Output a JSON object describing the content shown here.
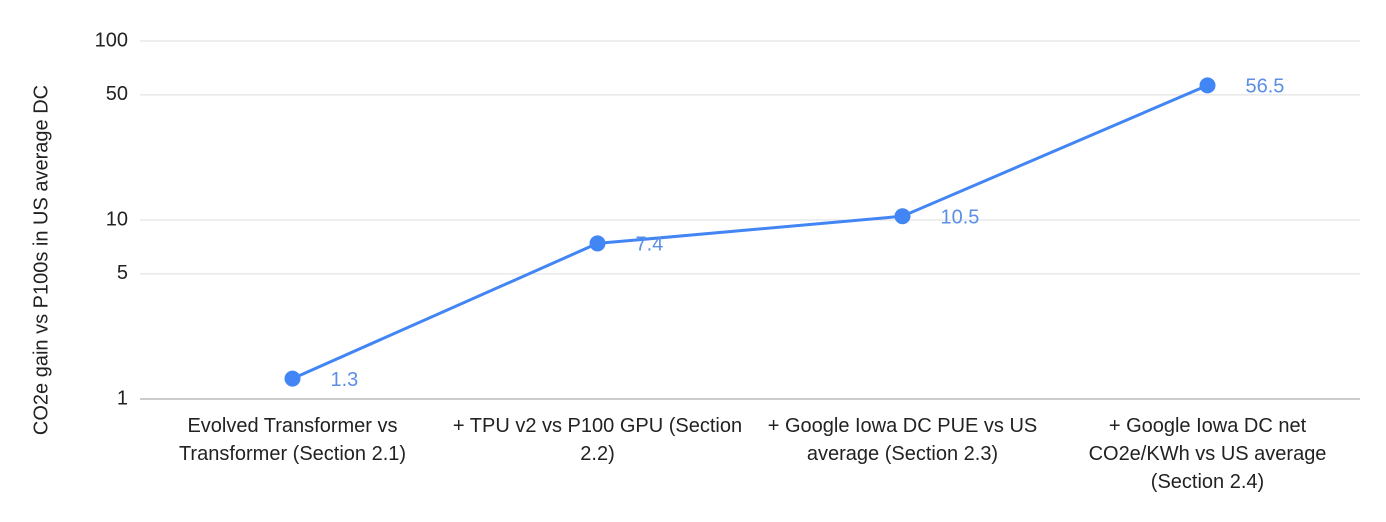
{
  "chart_data": {
    "type": "line",
    "y_label": "CO2e gain vs P100s in US average DC",
    "categories": [
      "Evolved Transformer vs Transformer (Section 2.1)",
      "+ TPU v2 vs P100 GPU (Section 2.2)",
      "+ Google Iowa DC PUE vs US average (Section 2.3)",
      "+ Google Iowa DC net CO2e/KWh vs US average (Section 2.4)"
    ],
    "values": [
      1.3,
      7.4,
      10.5,
      56.5
    ],
    "color": "#4285f4",
    "label_color": "#5b8ee6",
    "ylim": [
      1,
      100
    ],
    "yticks": [
      1,
      5,
      10,
      50,
      100
    ],
    "y_log": true,
    "grid": true
  }
}
